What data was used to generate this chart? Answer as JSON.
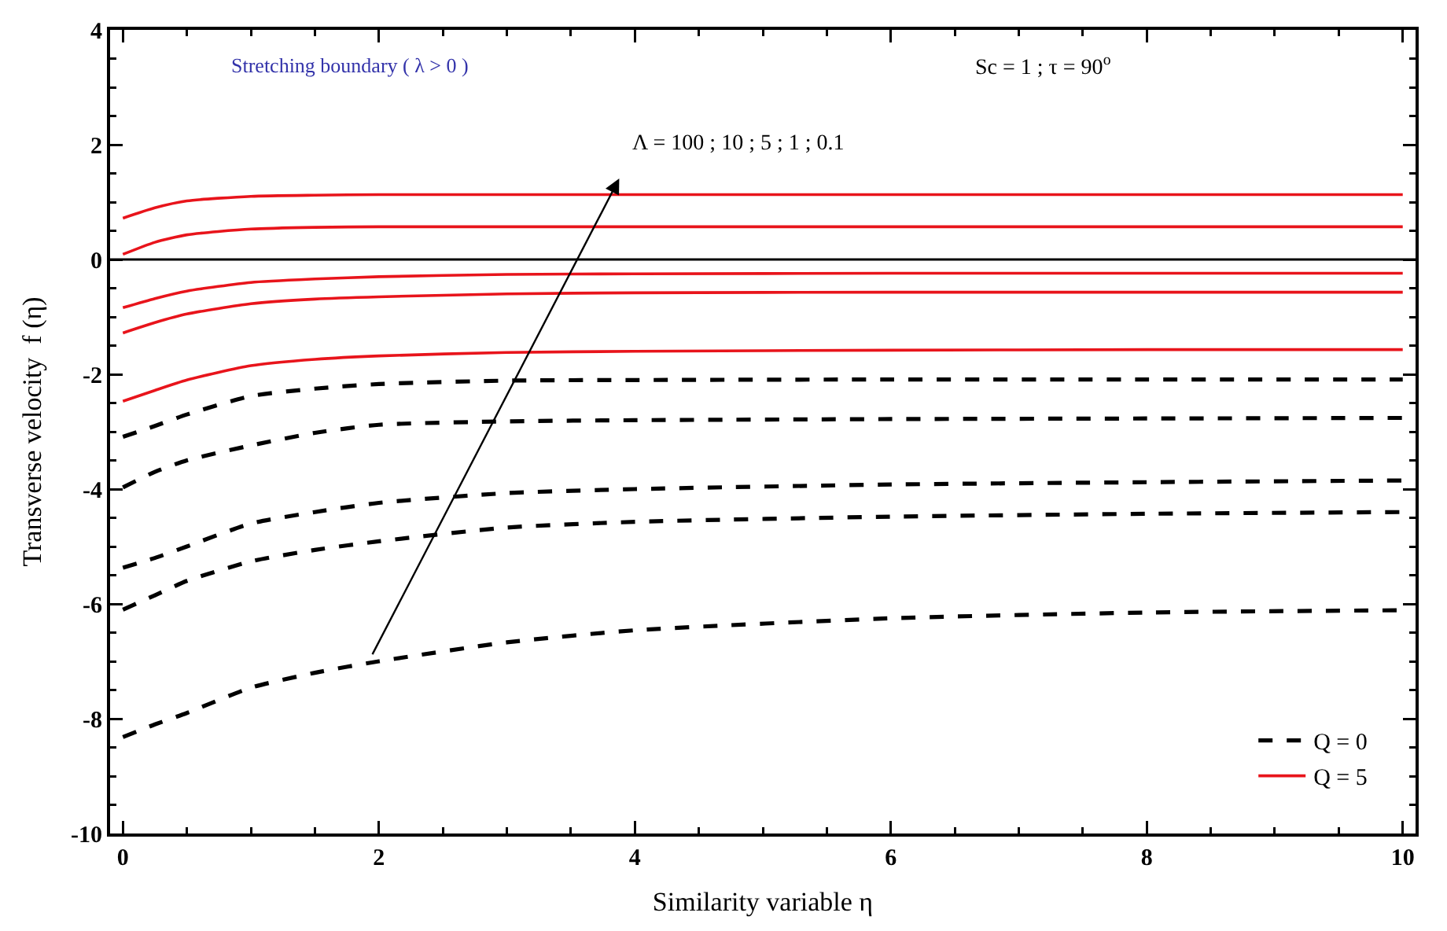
{
  "chart_data": {
    "type": "line",
    "xlabel": "Similarity variable η",
    "ylabel": "Transverse velocity  f (η)",
    "xlim": [
      -0.1,
      10.1
    ],
    "xticks": [
      0,
      2,
      4,
      6,
      8,
      10
    ],
    "ylim": [
      -10,
      4
    ],
    "yticks": [
      -10,
      -8,
      -6,
      -4,
      -2,
      0,
      2,
      4
    ],
    "grid": false,
    "legend": "bottom right",
    "marker": "none",
    "annotations": [
      "Stretching boundary ( λ > 0 )",
      "Sc = 1 ; τ = 90$^{o}$",
      "Λ = 100 ; 10 ; 5 ; 1 ; 0.1"
    ],
    "ref_lines": [
      {
        "axis": "y",
        "value": 0,
        "color": "#000000"
      }
    ],
    "x": [
      0,
      0.25,
      0.5,
      1,
      1.5,
      2,
      3,
      4,
      6,
      8,
      10
    ],
    "series": [
      {
        "name": "Q = 0",
        "color": "#000000",
        "line_style": "dashed",
        "values": [
          -3.09,
          -2.9,
          -2.7,
          -2.38,
          -2.25,
          -2.17,
          -2.11,
          -2.1,
          -2.09,
          -2.09,
          -2.09
        ]
      },
      {
        "color": "#000000",
        "line_style": "dashed",
        "values": [
          -3.97,
          -3.7,
          -3.5,
          -3.24,
          -3.02,
          -2.88,
          -2.82,
          -2.8,
          -2.78,
          -2.77,
          -2.76
        ]
      },
      {
        "color": "#000000",
        "line_style": "dashed",
        "values": [
          -5.37,
          -5.2,
          -5.0,
          -4.6,
          -4.4,
          -4.24,
          -4.07,
          -4.0,
          -3.92,
          -3.88,
          -3.85
        ]
      },
      {
        "color": "#000000",
        "line_style": "dashed",
        "values": [
          -6.1,
          -5.85,
          -5.6,
          -5.26,
          -5.06,
          -4.91,
          -4.67,
          -4.57,
          -4.48,
          -4.43,
          -4.4
        ]
      },
      {
        "color": "#000000",
        "line_style": "dashed",
        "values": [
          -8.32,
          -8.1,
          -7.9,
          -7.46,
          -7.2,
          -7.0,
          -6.67,
          -6.46,
          -6.25,
          -6.15,
          -6.11
        ]
      },
      {
        "name": "Q = 5",
        "color": "#e8141b",
        "line_style": "solid",
        "values": [
          0.72,
          0.9,
          1.02,
          1.1,
          1.12,
          1.13,
          1.13,
          1.13,
          1.13,
          1.13,
          1.13
        ]
      },
      {
        "color": "#e8141b",
        "line_style": "solid",
        "values": [
          0.09,
          0.3,
          0.43,
          0.53,
          0.56,
          0.57,
          0.57,
          0.57,
          0.57,
          0.57,
          0.57
        ]
      },
      {
        "color": "#e8141b",
        "line_style": "solid",
        "values": [
          -0.84,
          -0.68,
          -0.55,
          -0.4,
          -0.34,
          -0.3,
          -0.26,
          -0.25,
          -0.24,
          -0.24,
          -0.24
        ]
      },
      {
        "color": "#e8141b",
        "line_style": "solid",
        "values": [
          -1.28,
          -1.1,
          -0.95,
          -0.77,
          -0.69,
          -0.65,
          -0.6,
          -0.58,
          -0.57,
          -0.57,
          -0.57
        ]
      },
      {
        "color": "#e8141b",
        "line_style": "solid",
        "values": [
          -2.47,
          -2.28,
          -2.1,
          -1.85,
          -1.74,
          -1.68,
          -1.62,
          -1.6,
          -1.58,
          -1.57,
          -1.57
        ]
      }
    ]
  }
}
